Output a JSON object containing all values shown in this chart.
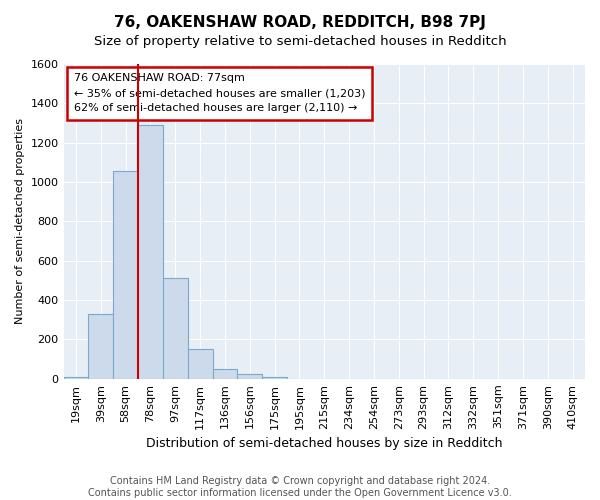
{
  "title": "76, OAKENSHAW ROAD, REDDITCH, B98 7PJ",
  "subtitle": "Size of property relative to semi-detached houses in Redditch",
  "xlabel": "Distribution of semi-detached houses by size in Redditch",
  "ylabel": "Number of semi-detached properties",
  "footer_line1": "Contains HM Land Registry data © Crown copyright and database right 2024.",
  "footer_line2": "Contains public sector information licensed under the Open Government Licence v3.0.",
  "categories": [
    "19sqm",
    "39sqm",
    "58sqm",
    "78sqm",
    "97sqm",
    "117sqm",
    "136sqm",
    "156sqm",
    "175sqm",
    "195sqm",
    "215sqm",
    "234sqm",
    "254sqm",
    "273sqm",
    "293sqm",
    "312sqm",
    "332sqm",
    "351sqm",
    "371sqm",
    "390sqm",
    "410sqm"
  ],
  "values": [
    10,
    330,
    1055,
    1290,
    510,
    150,
    50,
    22,
    10,
    0,
    0,
    0,
    0,
    0,
    0,
    0,
    0,
    0,
    0,
    0,
    0
  ],
  "bar_color": "#ccdaeb",
  "bar_edge_color": "#7aaacb",
  "property_line_index": 3,
  "annotation_line1": "76 OAKENSHAW ROAD: 77sqm",
  "annotation_line2": "← 35% of semi-detached houses are smaller (1,203)",
  "annotation_line3": "62% of semi-detached houses are larger (2,110) →",
  "annotation_box_color": "#ffffff",
  "annotation_box_edge_color": "#cc0000",
  "property_line_color": "#cc0000",
  "ylim": [
    0,
    1600
  ],
  "yticks": [
    0,
    200,
    400,
    600,
    800,
    1000,
    1200,
    1400,
    1600
  ],
  "background_color": "#ffffff",
  "plot_bg_color": "#e8eef5",
  "grid_color": "#ffffff",
  "title_fontsize": 11,
  "subtitle_fontsize": 9.5,
  "xlabel_fontsize": 9,
  "ylabel_fontsize": 8,
  "tick_fontsize": 8,
  "footer_fontsize": 7
}
